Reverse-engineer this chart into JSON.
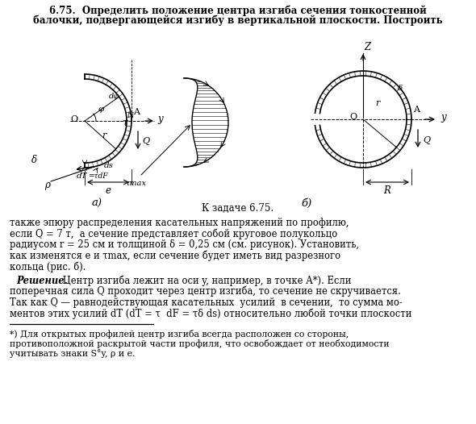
{
  "title_line1": "6.75.  Определить положение центра изгиба сечения тонкостенной",
  "title_line2": "балочки, подвергающейся изгибу в вертикальной плоскости. Построить",
  "caption": "К задаче 6.75.",
  "label_a": "а)",
  "label_b": "б)",
  "text1": "также эпюру распределения касательных напряжений по профилю,",
  "text2": "если Q = 7 т,  а сечение представляет собой круговое полукольцо",
  "text3": "радиусом r = 25 см и толщиной δ = 0,25 см (см. рисунок). Установить,",
  "text4": "как изменятся е и τmax, если сечение будет иметь вид разрезного",
  "text5": "кольца (рис. б).",
  "sol_header": "Решение.",
  "sol1": " Центр изгиба лежит на оси y, например, в точке А*). Если",
  "sol2": "поперечная сила Q проходит через центр изгиба, то сечение не скручивается.",
  "sol3": "Так как Q — равнодействующая касательных  усилий  в сечении,  то сумма мо-",
  "sol4": "ментов этих усилий dT (dT = τ  dF = τδ ds) относительно любой точки плоскости",
  "fn1": "*) Для открытых профилей центр изгиба всегда расположен со стороны,",
  "fn2": "противоположной раскрытой части профиля, что освобождает от необходимости",
  "fn3": "учитывать знаки S°y, ρ и е.",
  "bg_color": "#ffffff"
}
